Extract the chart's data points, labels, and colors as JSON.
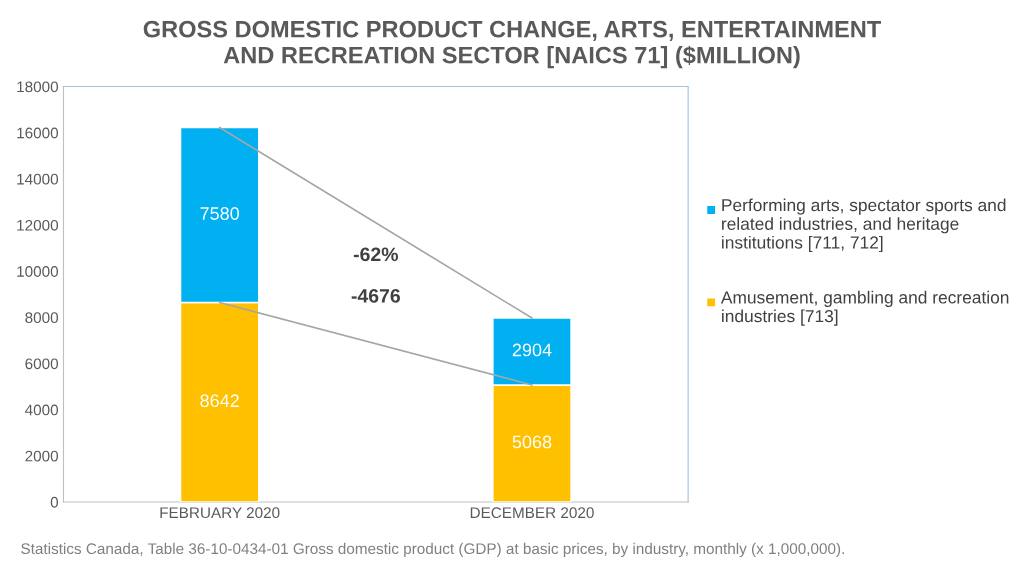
{
  "chart_data": {
    "type": "bar",
    "title": "GROSS DOMESTIC PRODUCT CHANGE, ARTS, ENTERTAINMENT\nAND RECREATION SECTOR [NAICS 71] ($MILLION)",
    "categories": [
      "FEBRUARY 2020",
      "DECEMBER 2020"
    ],
    "stacked": true,
    "data_labels": true,
    "legend": "right",
    "grid": false,
    "ylim": [
      0,
      18000
    ],
    "yticks": [
      0,
      2000,
      4000,
      6000,
      8000,
      10000,
      12000,
      14000,
      16000,
      18000
    ],
    "series": [
      {
        "name": "Amusement, gambling and recreation industries [713]",
        "color": "#ffc000",
        "values": [
          8642,
          5068
        ]
      },
      {
        "name": "Performing arts, spectator sports and related industries, and heritage institutions [711, 712]",
        "color": "#00b0f0",
        "values": [
          7580,
          2904
        ]
      },
      {
        "type": "line",
        "color": "#a6a6a6",
        "values": [
          16222,
          7972
        ],
        "value_labels": [
          null,
          null
        ]
      },
      {
        "type": "line",
        "color": "#a6a6a6",
        "values": [
          8642,
          5068
        ],
        "value_labels": [
          null,
          null
        ]
      }
    ],
    "annotations": [
      "-62%",
      "-4676",
      "Statistics Canada, Table 36-10-0434-01 Gross domestic product (GDP) at basic prices, by industry, monthly (x 1,000,000)."
    ]
  }
}
